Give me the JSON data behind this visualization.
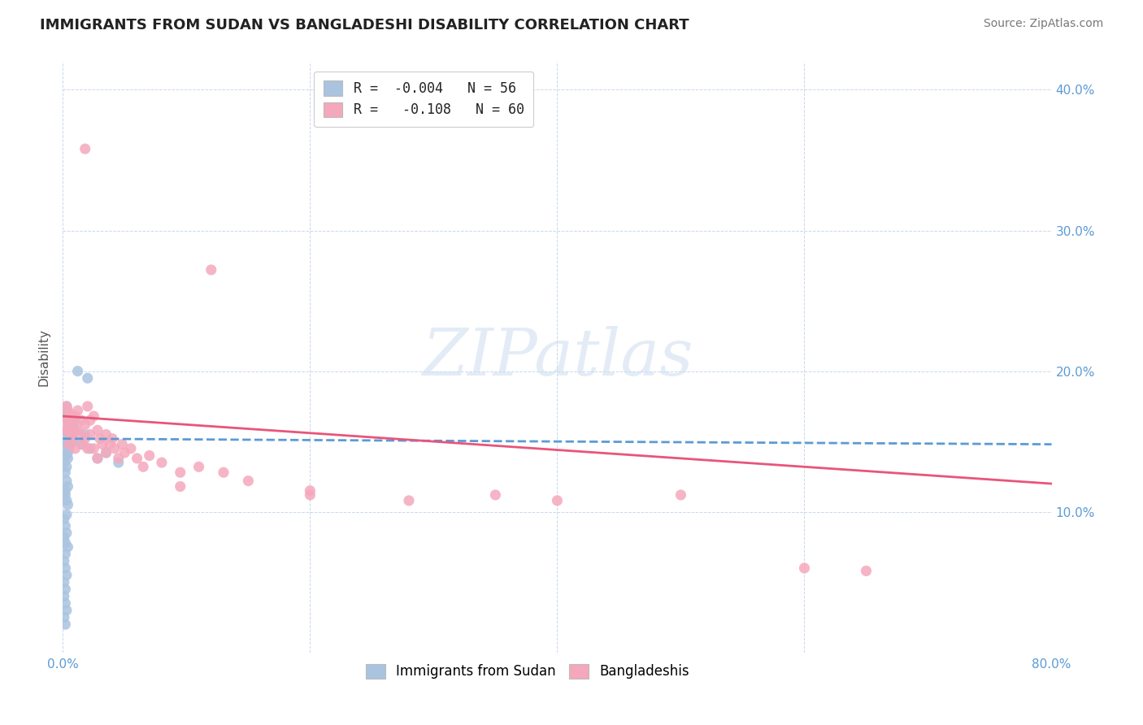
{
  "title": "IMMIGRANTS FROM SUDAN VS BANGLADESHI DISABILITY CORRELATION CHART",
  "source": "Source: ZipAtlas.com",
  "ylabel": "Disability",
  "xlim": [
    0.0,
    0.8
  ],
  "ylim": [
    0.0,
    0.42
  ],
  "yticks": [
    0.0,
    0.1,
    0.2,
    0.3,
    0.4
  ],
  "ytick_labels": [
    "",
    "10.0%",
    "20.0%",
    "30.0%",
    "40.0%"
  ],
  "xticks": [
    0.0,
    0.2,
    0.4,
    0.6,
    0.8
  ],
  "xtick_labels": [
    "0.0%",
    "",
    "",
    "",
    "80.0%"
  ],
  "legend_R_blue": "-0.004",
  "legend_N_blue": "56",
  "legend_R_pink": "-0.108",
  "legend_N_pink": "60",
  "watermark": "ZIPatlas",
  "blue_color": "#aac4e0",
  "pink_color": "#f5a8bc",
  "blue_line_color": "#5b9bd5",
  "pink_line_color": "#e8557a",
  "blue_trend": [
    0.0,
    0.8,
    0.152,
    0.148
  ],
  "pink_trend": [
    0.0,
    0.8,
    0.168,
    0.12
  ],
  "blue_scatter": [
    [
      0.002,
      0.152
    ],
    [
      0.003,
      0.158
    ],
    [
      0.004,
      0.148
    ],
    [
      0.002,
      0.168
    ],
    [
      0.003,
      0.172
    ],
    [
      0.004,
      0.165
    ],
    [
      0.002,
      0.145
    ],
    [
      0.003,
      0.14
    ],
    [
      0.001,
      0.135
    ],
    [
      0.004,
      0.158
    ],
    [
      0.005,
      0.162
    ],
    [
      0.003,
      0.175
    ],
    [
      0.005,
      0.155
    ],
    [
      0.006,
      0.148
    ],
    [
      0.004,
      0.142
    ],
    [
      0.003,
      0.132
    ],
    [
      0.002,
      0.128
    ],
    [
      0.004,
      0.138
    ],
    [
      0.006,
      0.16
    ],
    [
      0.007,
      0.155
    ],
    [
      0.005,
      0.145
    ],
    [
      0.008,
      0.15
    ],
    [
      0.009,
      0.16
    ],
    [
      0.01,
      0.165
    ],
    [
      0.003,
      0.122
    ],
    [
      0.004,
      0.118
    ],
    [
      0.002,
      0.115
    ],
    [
      0.003,
      0.108
    ],
    [
      0.002,
      0.112
    ],
    [
      0.004,
      0.105
    ],
    [
      0.001,
      0.095
    ],
    [
      0.002,
      0.09
    ],
    [
      0.003,
      0.098
    ],
    [
      0.001,
      0.082
    ],
    [
      0.002,
      0.078
    ],
    [
      0.003,
      0.085
    ],
    [
      0.004,
      0.075
    ],
    [
      0.002,
      0.07
    ],
    [
      0.001,
      0.065
    ],
    [
      0.002,
      0.06
    ],
    [
      0.003,
      0.055
    ],
    [
      0.001,
      0.05
    ],
    [
      0.002,
      0.045
    ],
    [
      0.001,
      0.04
    ],
    [
      0.002,
      0.035
    ],
    [
      0.003,
      0.03
    ],
    [
      0.001,
      0.025
    ],
    [
      0.002,
      0.02
    ],
    [
      0.015,
      0.148
    ],
    [
      0.018,
      0.155
    ],
    [
      0.022,
      0.145
    ],
    [
      0.028,
      0.138
    ],
    [
      0.035,
      0.142
    ],
    [
      0.045,
      0.135
    ],
    [
      0.012,
      0.2
    ],
    [
      0.02,
      0.195
    ]
  ],
  "pink_scatter": [
    [
      0.002,
      0.165
    ],
    [
      0.003,
      0.158
    ],
    [
      0.004,
      0.172
    ],
    [
      0.005,
      0.162
    ],
    [
      0.003,
      0.175
    ],
    [
      0.006,
      0.168
    ],
    [
      0.004,
      0.158
    ],
    [
      0.005,
      0.148
    ],
    [
      0.007,
      0.162
    ],
    [
      0.006,
      0.155
    ],
    [
      0.008,
      0.165
    ],
    [
      0.009,
      0.158
    ],
    [
      0.01,
      0.168
    ],
    [
      0.012,
      0.172
    ],
    [
      0.008,
      0.152
    ],
    [
      0.01,
      0.145
    ],
    [
      0.012,
      0.158
    ],
    [
      0.015,
      0.165
    ],
    [
      0.014,
      0.155
    ],
    [
      0.018,
      0.162
    ],
    [
      0.016,
      0.148
    ],
    [
      0.02,
      0.175
    ],
    [
      0.022,
      0.165
    ],
    [
      0.025,
      0.168
    ],
    [
      0.018,
      0.152
    ],
    [
      0.02,
      0.145
    ],
    [
      0.022,
      0.155
    ],
    [
      0.025,
      0.145
    ],
    [
      0.028,
      0.158
    ],
    [
      0.03,
      0.152
    ],
    [
      0.028,
      0.138
    ],
    [
      0.032,
      0.148
    ],
    [
      0.035,
      0.155
    ],
    [
      0.038,
      0.148
    ],
    [
      0.04,
      0.152
    ],
    [
      0.035,
      0.142
    ],
    [
      0.042,
      0.145
    ],
    [
      0.045,
      0.138
    ],
    [
      0.048,
      0.148
    ],
    [
      0.05,
      0.142
    ],
    [
      0.055,
      0.145
    ],
    [
      0.06,
      0.138
    ],
    [
      0.065,
      0.132
    ],
    [
      0.07,
      0.14
    ],
    [
      0.08,
      0.135
    ],
    [
      0.095,
      0.128
    ],
    [
      0.11,
      0.132
    ],
    [
      0.13,
      0.128
    ],
    [
      0.15,
      0.122
    ],
    [
      0.2,
      0.115
    ],
    [
      0.018,
      0.358
    ],
    [
      0.12,
      0.272
    ],
    [
      0.095,
      0.118
    ],
    [
      0.2,
      0.112
    ],
    [
      0.28,
      0.108
    ],
    [
      0.35,
      0.112
    ],
    [
      0.4,
      0.108
    ],
    [
      0.5,
      0.112
    ],
    [
      0.6,
      0.06
    ],
    [
      0.65,
      0.058
    ]
  ]
}
